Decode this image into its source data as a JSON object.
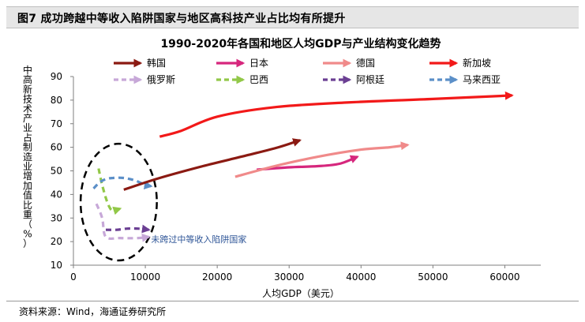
{
  "figure_header": {
    "title": "图7  成功跨越中等收入陷阱国家与地区高科技产业占比均有所提升"
  },
  "source": "资料来源：Wind，海通证券研究所",
  "colors": {
    "korea": "#8b1a12",
    "japan": "#d6277d",
    "germany": "#f08a8a",
    "singapore": "#f21919",
    "russia": "#c7a8d8",
    "brazil": "#92c848",
    "argentina": "#6b3f93",
    "malaysia": "#5b8fc8",
    "ellipse": "#000000",
    "annotation": "#2e5597"
  },
  "chart_data": {
    "type": "line",
    "title": "1990-2020年各国和地区人均GDP与产业结构变化趋势",
    "xlabel": "人均GDP（美元）",
    "ylabel": "中高新技术产业占制造业增加值比重（%）",
    "xlim": [
      0,
      65000
    ],
    "ylim": [
      10,
      90
    ],
    "xticks": [
      "0",
      "10000",
      "20000",
      "30000",
      "40000",
      "50000",
      "60000"
    ],
    "yticks": [
      "10",
      "20",
      "30",
      "40",
      "50",
      "60",
      "70",
      "80",
      "90"
    ],
    "legend_position": "top",
    "series": [
      {
        "name": "韩国",
        "key": "korea",
        "style": "solid",
        "x": [
          7000,
          12000,
          18000,
          24000,
          28500,
          31500
        ],
        "y": [
          42,
          47,
          52,
          56.5,
          60,
          63
        ]
      },
      {
        "name": "日本",
        "key": "japan",
        "style": "solid",
        "x": [
          25500,
          30000,
          34000,
          37000,
          39500
        ],
        "y": [
          50.5,
          51.5,
          52,
          53,
          56
        ]
      },
      {
        "name": "德国",
        "key": "germany",
        "style": "solid",
        "x": [
          22500,
          28000,
          34000,
          40000,
          44000,
          46500
        ],
        "y": [
          47.5,
          52,
          56,
          59,
          60,
          61
        ]
      },
      {
        "name": "新加坡",
        "key": "singapore",
        "style": "solid",
        "x": [
          12000,
          15000,
          20000,
          28000,
          38000,
          50000,
          61000
        ],
        "y": [
          64.5,
          67,
          73,
          77,
          79,
          80.5,
          82
        ]
      },
      {
        "name": "俄罗斯",
        "key": "russia",
        "style": "dashed",
        "x": [
          3200,
          4000,
          4500,
          6500,
          9000,
          10500
        ],
        "y": [
          36,
          30,
          22,
          21.5,
          21.5,
          22
        ]
      },
      {
        "name": "巴西",
        "key": "brazil",
        "style": "dashed",
        "x": [
          3500,
          4000,
          4800,
          5500,
          6500
        ],
        "y": [
          51,
          44,
          36,
          33,
          34
        ]
      },
      {
        "name": "阿根廷",
        "key": "argentina",
        "style": "dashed",
        "x": [
          4500,
          6000,
          7500,
          9000,
          10500
        ],
        "y": [
          25,
          25,
          25.5,
          25.5,
          25
        ]
      },
      {
        "name": "马来西亚",
        "key": "malaysia",
        "style": "dashed",
        "x": [
          2800,
          3600,
          4500,
          5500,
          7000,
          8500,
          10000,
          10800
        ],
        "y": [
          42.5,
          45,
          46.5,
          47,
          47,
          46,
          44,
          43.5
        ]
      }
    ],
    "annotation": {
      "text": "未跨过中等收入陷阱国家",
      "x": 10800,
      "y": 21
    }
  }
}
